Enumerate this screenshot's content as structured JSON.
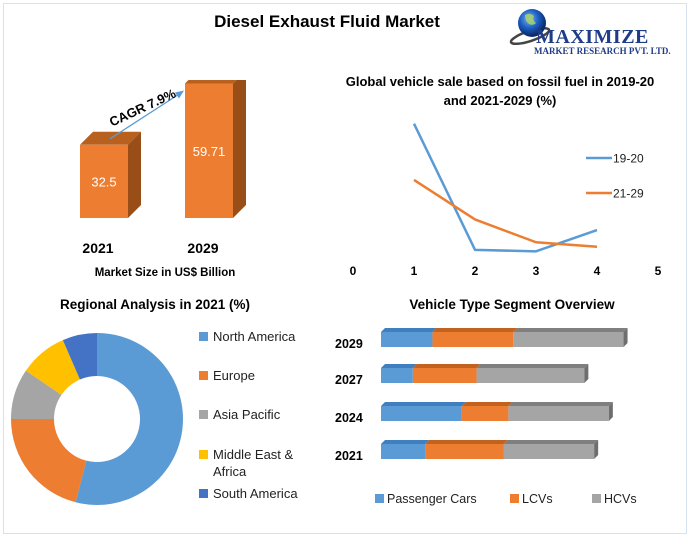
{
  "header": {
    "title": "Diesel Exhaust Fluid Market",
    "logo": {
      "icon": "globe-icon",
      "brand": "MAXIMIZE",
      "tagline": "MARKET RESEARCH PVT. LTD."
    }
  },
  "colors": {
    "blue": "#5b9bd5",
    "orange": "#ed7d31",
    "gray": "#a5a5a5",
    "yellow": "#ffc000",
    "darkblue": "#4472c4"
  },
  "chart_data": [
    {
      "id": "market-size",
      "type": "bar",
      "title": "",
      "categories": [
        "2021",
        "2029"
      ],
      "values": [
        32.5,
        59.71
      ],
      "value_labels": [
        "32.5",
        "59.71"
      ],
      "xlabel": "Market Size in US$ Billion",
      "ylabel": "",
      "ylim": [
        0,
        65
      ],
      "annotation": "CAGR 7.9%",
      "grid": false
    },
    {
      "id": "fossil-fuel-sales",
      "type": "line",
      "title": "Global vehicle sale based on fossil fuel in 2019-20 and 2021-2029 (%)",
      "x": [
        1,
        2,
        3,
        4
      ],
      "xticks": [
        "0",
        "1",
        "2",
        "3",
        "4",
        "5"
      ],
      "xlim": [
        0,
        5
      ],
      "ylim": [
        0,
        100
      ],
      "series": [
        {
          "name": "19-20",
          "values": [
            91,
            8,
            7,
            21
          ]
        },
        {
          "name": "21-29",
          "values": [
            54,
            28,
            13,
            10
          ]
        }
      ],
      "legend": "right",
      "grid": false
    },
    {
      "id": "regional-analysis",
      "type": "pie",
      "title": "Regional Analysis in 2021 (%)",
      "categories": [
        "North America",
        "Europe",
        "Asia Pacific",
        "Middle East & Africa",
        "South America"
      ],
      "legend_labels": [
        "North America",
        "Europe",
        "Asia Pacific",
        "Middle East &",
        "Africa",
        "South America"
      ],
      "values": [
        54,
        21,
        9.5,
        9,
        6.5
      ],
      "legend": "right"
    },
    {
      "id": "vehicle-segment",
      "type": "bar",
      "orientation": "horizontal-stacked",
      "title": "Vehicle Type Segment Overview",
      "categories": [
        "2029",
        "2027",
        "2024",
        "2021"
      ],
      "series": [
        {
          "name": "Passenger Cars",
          "values": [
            21,
            13,
            33,
            18
          ]
        },
        {
          "name": "LCVs",
          "values": [
            33,
            26,
            19,
            32
          ]
        },
        {
          "name": "HCVs",
          "values": [
            45,
            44,
            41,
            37
          ]
        }
      ],
      "xlim": [
        0,
        100
      ],
      "legend": "bottom"
    }
  ]
}
